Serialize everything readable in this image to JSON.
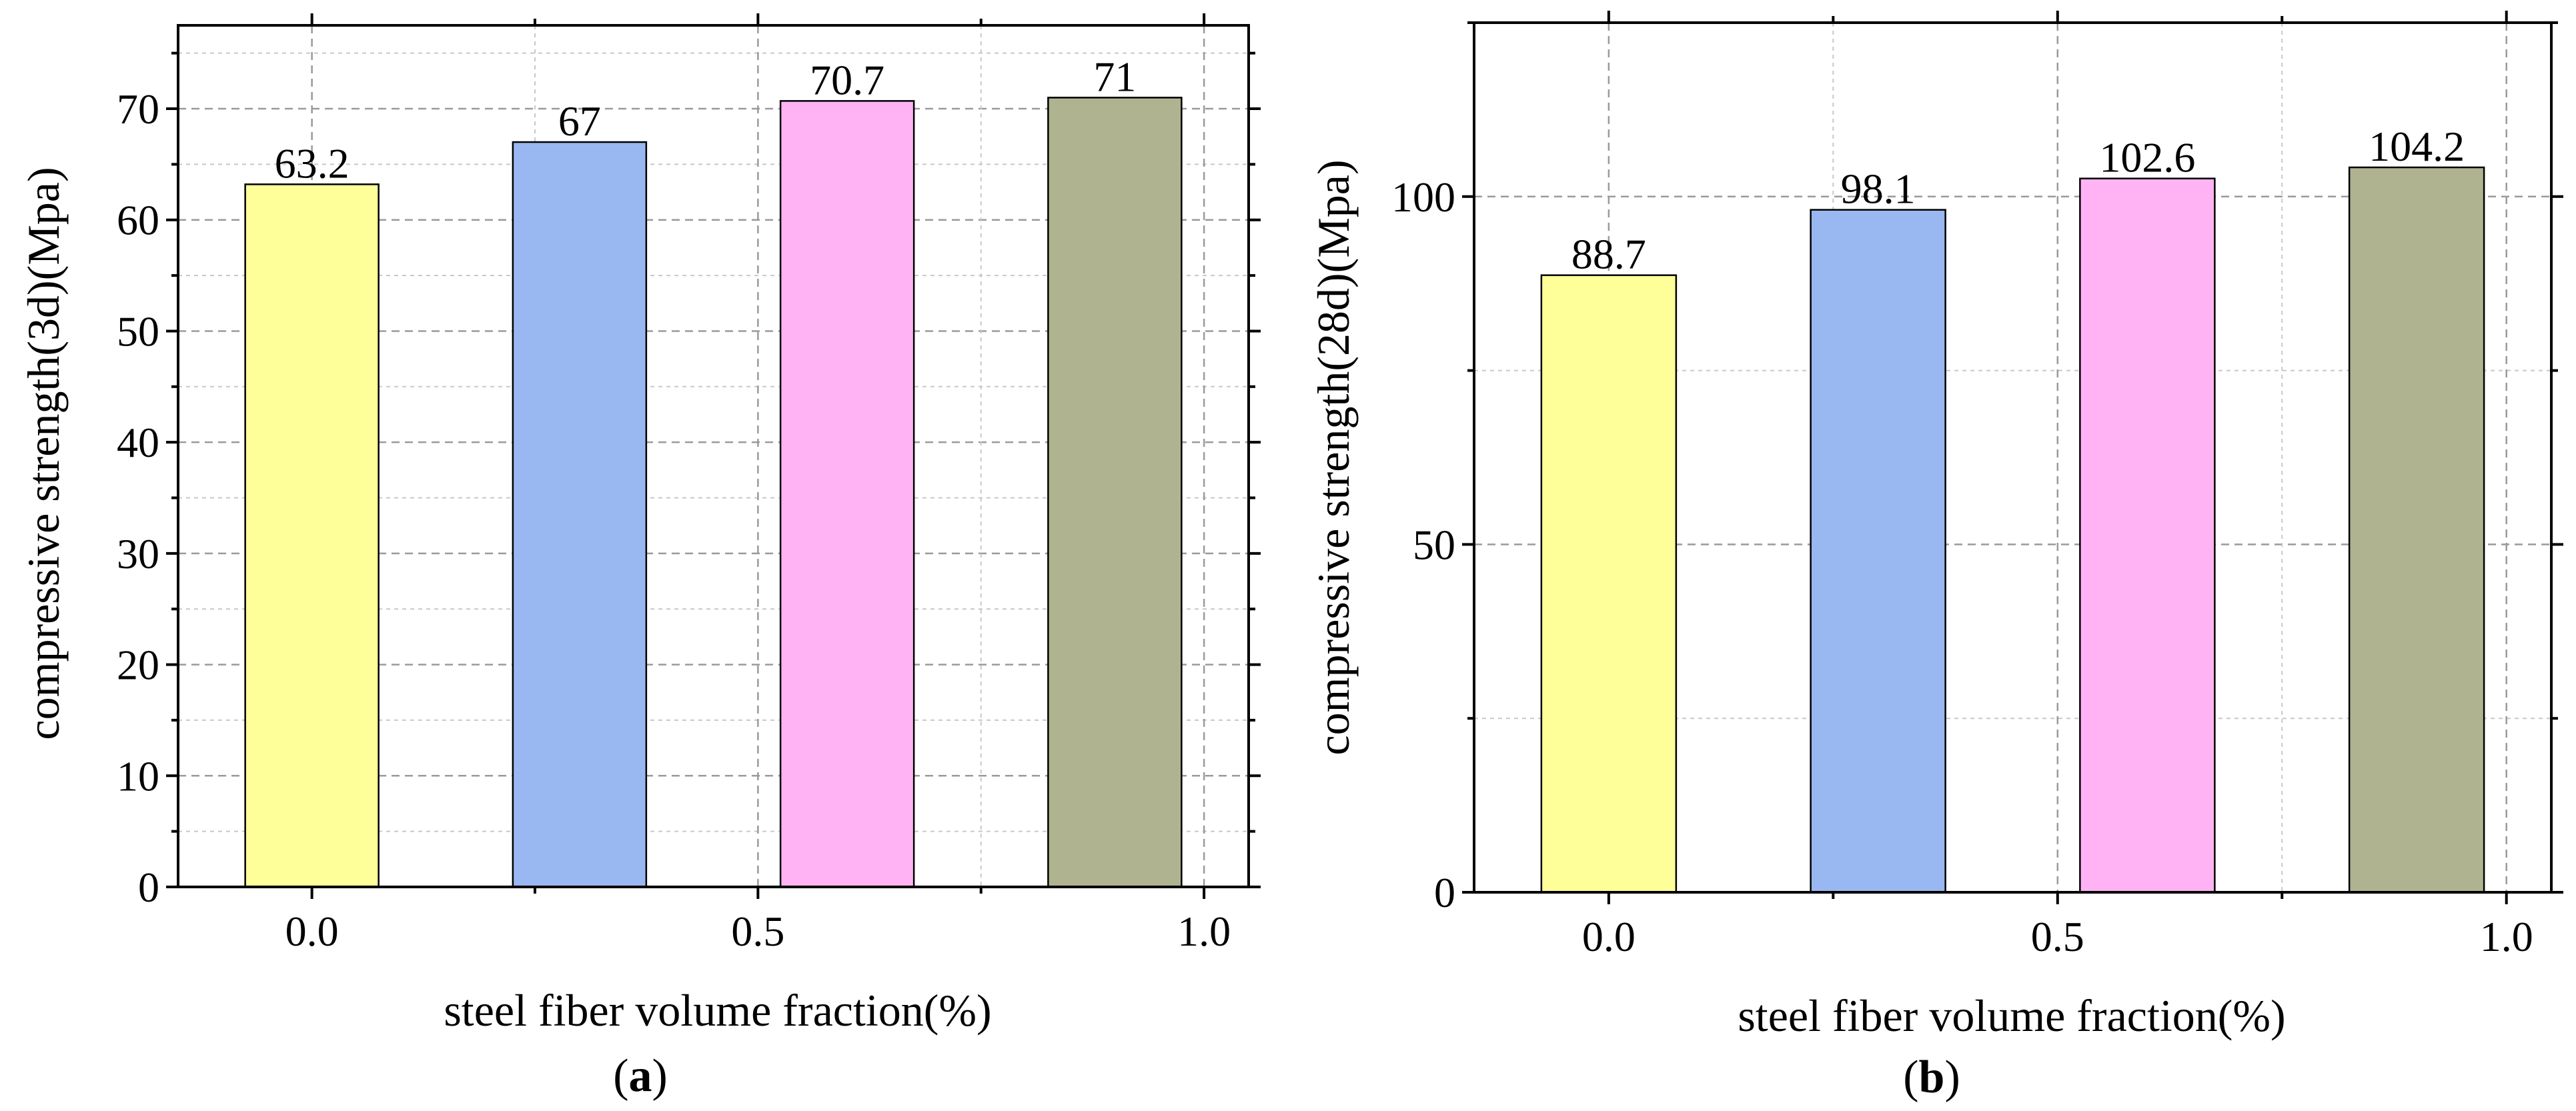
{
  "chart_data": [
    {
      "type": "bar",
      "panel_label": "a",
      "categories": [
        "0.0",
        "",
        "0.5",
        "",
        "1.0"
      ],
      "x_ticks": [
        "0.0",
        "0.5",
        "1.0"
      ],
      "bars": [
        {
          "x": 0.0,
          "value": 63.2,
          "label": "63.2",
          "color": "#ffff99"
        },
        {
          "x": 0.3,
          "value": 67,
          "label": "67",
          "color": "#99b8f2"
        },
        {
          "x": 0.6,
          "value": 70.7,
          "label": "70.7",
          "color": "#ffb3f5"
        },
        {
          "x": 0.9,
          "value": 71,
          "label": "71",
          "color": "#b0b38f"
        }
      ],
      "xlabel": "steel fiber volume fraction(%)",
      "ylabel": "compressive strength(3d)(Mpa)",
      "xlim": [
        -0.15,
        1.05
      ],
      "ylim": [
        0,
        77.5
      ],
      "y_ticks": [
        0,
        10,
        20,
        30,
        40,
        50,
        60,
        70
      ],
      "y_tick_labels": [
        "0",
        "10",
        "20",
        "30",
        "40",
        "50",
        "60",
        "70"
      ],
      "grid": true
    },
    {
      "type": "bar",
      "panel_label": "b",
      "x_ticks": [
        "0.0",
        "0.5",
        "1.0"
      ],
      "bars": [
        {
          "x": 0.0,
          "value": 88.7,
          "label": "88.7",
          "color": "#ffff99"
        },
        {
          "x": 0.3,
          "value": 98.1,
          "label": "98.1",
          "color": "#99b8f2"
        },
        {
          "x": 0.6,
          "value": 102.6,
          "label": "102.6",
          "color": "#ffb3f5"
        },
        {
          "x": 0.9,
          "value": 104.2,
          "label": "104.2",
          "color": "#b0b38f"
        }
      ],
      "xlabel": "steel fiber volume fraction(%)",
      "ylabel": "compressive strength(28d)(Mpa)",
      "xlim": [
        -0.15,
        1.05
      ],
      "ylim": [
        0,
        125
      ],
      "y_ticks": [
        0,
        50,
        100
      ],
      "y_tick_labels": [
        "0",
        "50",
        "100"
      ],
      "grid": true
    }
  ]
}
